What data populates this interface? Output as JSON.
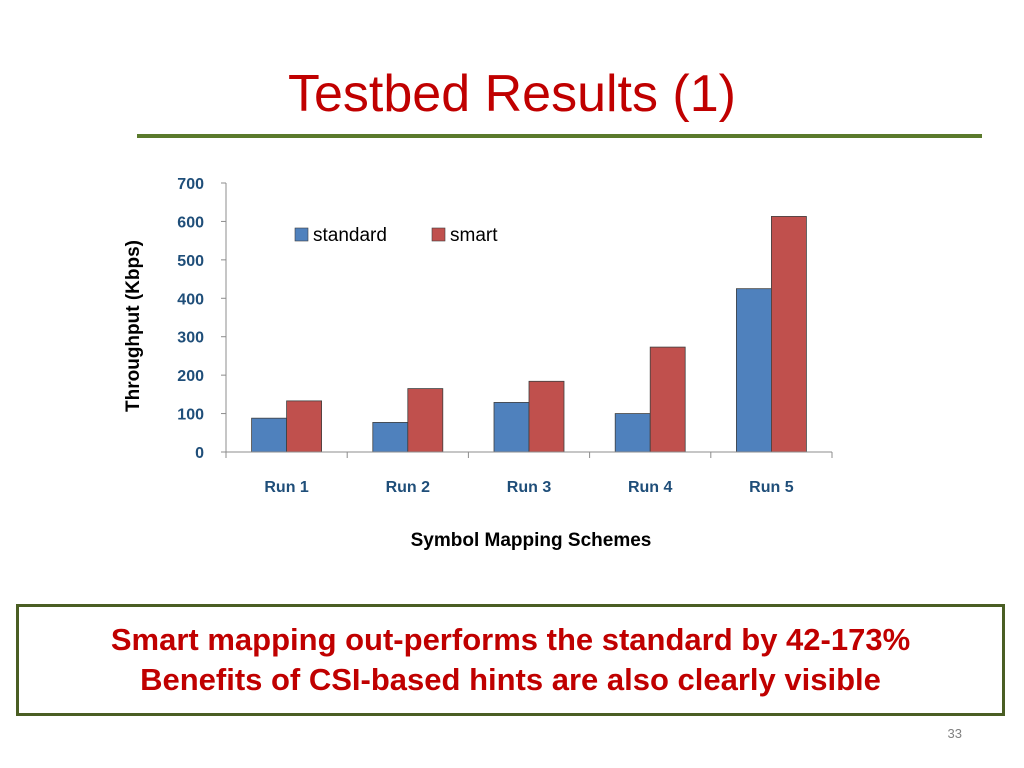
{
  "slide": {
    "title": "Testbed Results (1)",
    "page_number": "33",
    "callout": [
      "Smart mapping out-performs the standard by 42-173%",
      "Benefits of CSI-based hints are also clearly visible"
    ]
  },
  "colors": {
    "title": "#c00000",
    "rule": "#5a7a2c",
    "standard": "#4f81bd",
    "smart": "#c0504d",
    "tick_labels": "#1f4e79"
  },
  "chart_data": {
    "type": "bar",
    "categories": [
      "Run 1",
      "Run 2",
      "Run 3",
      "Run 4",
      "Run 5"
    ],
    "series": [
      {
        "name": "standard",
        "values": [
          88,
          77,
          129,
          100,
          425
        ]
      },
      {
        "name": "smart",
        "values": [
          133,
          165,
          184,
          273,
          613
        ]
      }
    ],
    "xlabel": "Symbol Mapping Schemes",
    "ylabel": "Throughput (Kbps)",
    "ylim": [
      0,
      700
    ],
    "yticks": [
      0,
      100,
      200,
      300,
      400,
      500,
      600,
      700
    ],
    "grid": false,
    "legend": "top-center"
  }
}
